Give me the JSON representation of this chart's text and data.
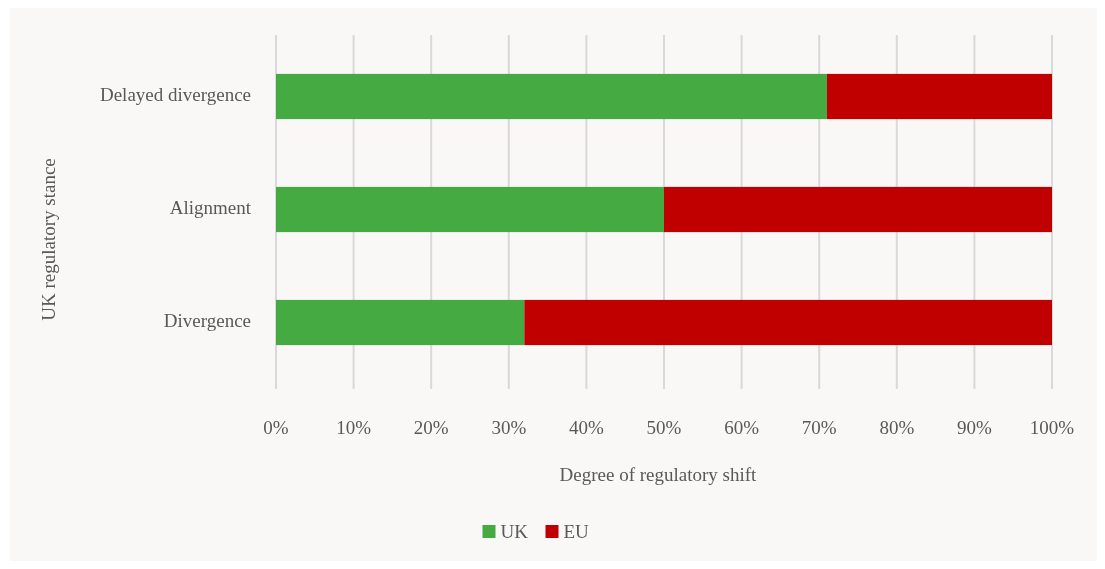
{
  "chart_data": {
    "type": "bar",
    "orientation": "horizontal",
    "stacked": true,
    "categories": [
      "Delayed divergence",
      "Alignment",
      "Divergence"
    ],
    "series": [
      {
        "name": "UK",
        "color": "#46aa42",
        "values": [
          71,
          50,
          32
        ]
      },
      {
        "name": "EU",
        "color": "#c00000",
        "values": [
          29,
          50,
          68
        ]
      }
    ],
    "xlim": [
      0,
      100
    ],
    "xticks": [
      {
        "value": 0,
        "label": "0%"
      },
      {
        "value": 10,
        "label": "10%"
      },
      {
        "value": 20,
        "label": "20%"
      },
      {
        "value": 30,
        "label": "30%"
      },
      {
        "value": 40,
        "label": "40%"
      },
      {
        "value": 50,
        "label": "50%"
      },
      {
        "value": 60,
        "label": "60%"
      },
      {
        "value": 70,
        "label": "70%"
      },
      {
        "value": 80,
        "label": "80%"
      },
      {
        "value": 90,
        "label": "90%"
      },
      {
        "value": 100,
        "label": "100%"
      }
    ],
    "xlabel": "Degree of regulatory shift",
    "ylabel": "UK regulatory stance",
    "grid": "x",
    "legend": "bottom"
  }
}
